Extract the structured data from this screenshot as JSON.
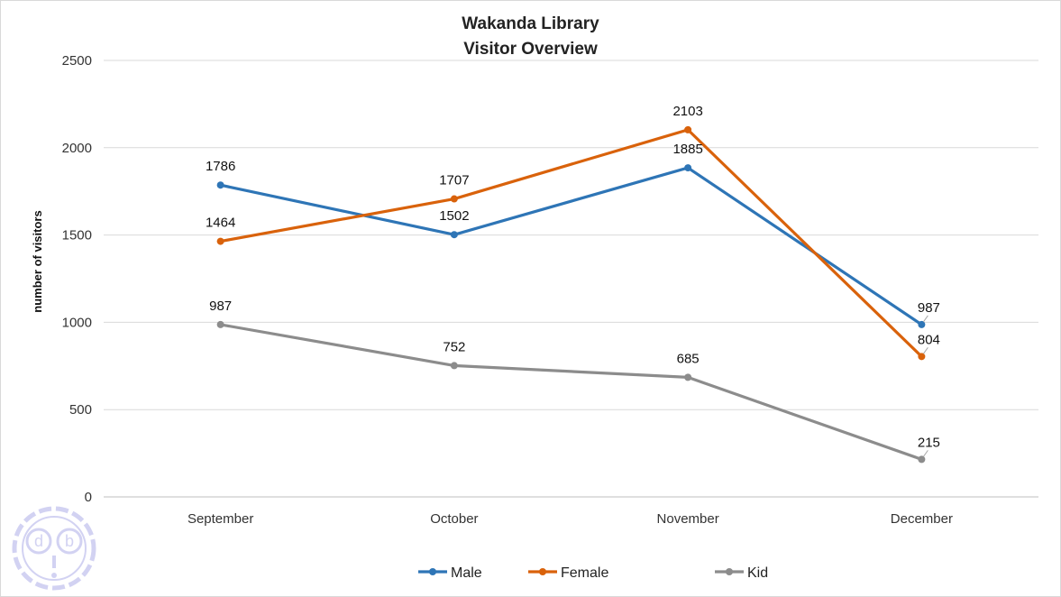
{
  "chart_data": {
    "type": "line",
    "title": "Wakanda Library",
    "subtitle": "Visitor Overview",
    "xlabel": "",
    "ylabel": "number of visitors",
    "categories": [
      "September",
      "October",
      "November",
      "December"
    ],
    "ylim": [
      0,
      2500
    ],
    "yticks": [
      0,
      500,
      1000,
      1500,
      2000,
      2500
    ],
    "grid": true,
    "legend_position": "bottom",
    "series": [
      {
        "name": "Male",
        "color": "#2e75b6",
        "values": [
          1786,
          1502,
          1885,
          987
        ]
      },
      {
        "name": "Female",
        "color": "#d9620b",
        "values": [
          1464,
          1707,
          2103,
          804
        ]
      },
      {
        "name": "Kid",
        "color": "#8c8c8c",
        "values": [
          987,
          752,
          685,
          215
        ]
      }
    ]
  },
  "watermark": {
    "text": "d b",
    "color": "#c8c8f0"
  }
}
